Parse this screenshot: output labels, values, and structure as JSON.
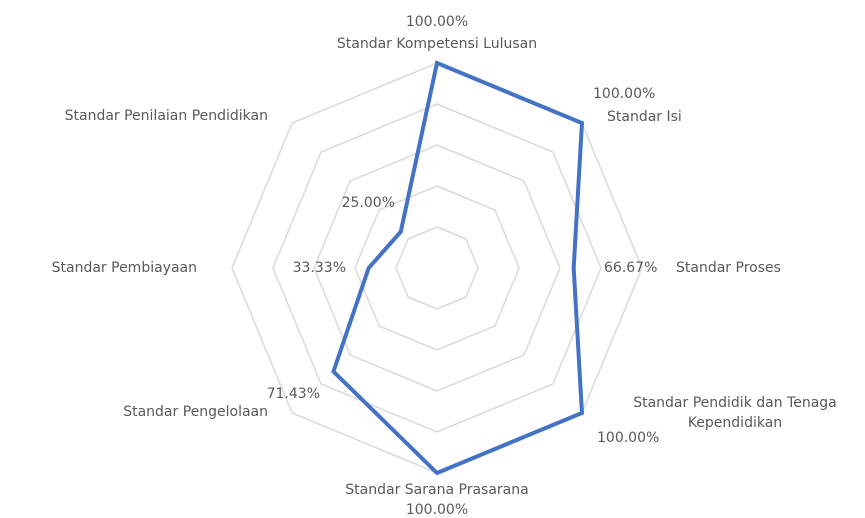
{
  "chart_data": {
    "type": "radar",
    "categories": [
      "Standar Kompetensi Lulusan",
      "Standar Isi",
      "Standar Proses",
      "Standar Pendidik dan Tenaga Kependidikan",
      "Standar Sarana Prasarana",
      "Standar Pengelolaan",
      "Standar Pembiayaan",
      "Standar Penilaian Pendidikan"
    ],
    "values": [
      100,
      100,
      66.67,
      100,
      100,
      71.43,
      33.33,
      25
    ],
    "value_labels": [
      "100.00%",
      "100.00%",
      "66.67%",
      "100.00%",
      "100.00%",
      "71.43%",
      "33.33%",
      "25.00%"
    ],
    "color": "#4472c4",
    "ylim": [
      0,
      100
    ],
    "yticks": [
      20,
      40,
      60,
      80,
      100
    ],
    "grid": true
  }
}
